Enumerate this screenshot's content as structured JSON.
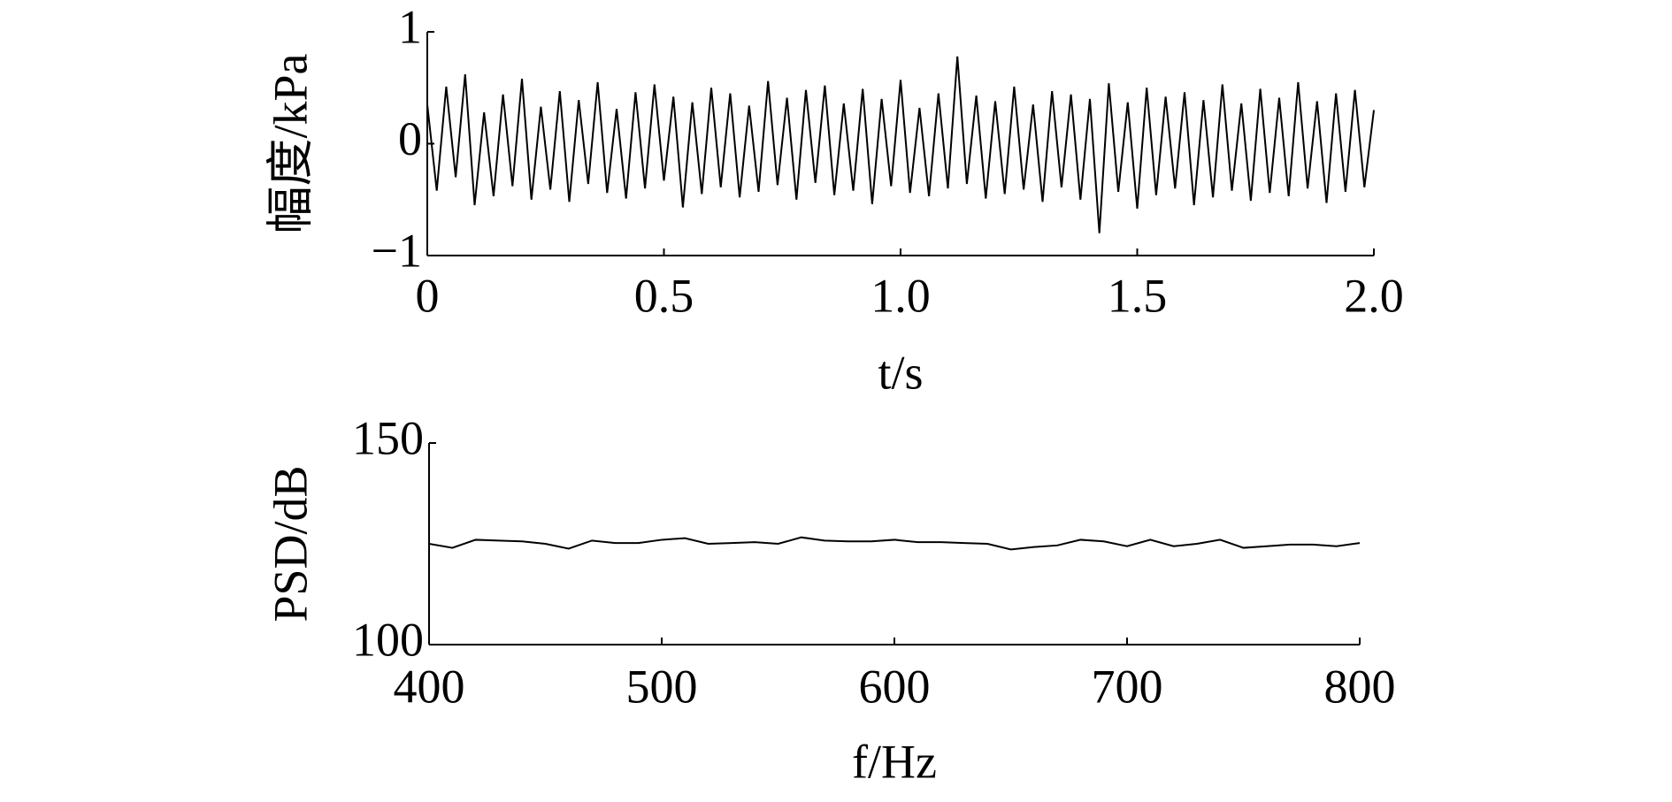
{
  "chart_data": [
    {
      "type": "line",
      "y_label": "幅度/kPa",
      "x_label": "t/s",
      "x": [
        0,
        0.02,
        0.04,
        0.06,
        0.08,
        0.1,
        0.12,
        0.14,
        0.16,
        0.18,
        0.2,
        0.22,
        0.24,
        0.26,
        0.28,
        0.3,
        0.32,
        0.34,
        0.36,
        0.38,
        0.4,
        0.42,
        0.44,
        0.46,
        0.48,
        0.5,
        0.52,
        0.54,
        0.56,
        0.58,
        0.6,
        0.62,
        0.64,
        0.66,
        0.68,
        0.7,
        0.72,
        0.74,
        0.76,
        0.78,
        0.8,
        0.82,
        0.84,
        0.86,
        0.88,
        0.9,
        0.92,
        0.94,
        0.96,
        0.98,
        1,
        1.02,
        1.04,
        1.06,
        1.08,
        1.1,
        1.12,
        1.14,
        1.16,
        1.18,
        1.2,
        1.22,
        1.24,
        1.26,
        1.28,
        1.3,
        1.32,
        1.34,
        1.36,
        1.38,
        1.4,
        1.42,
        1.44,
        1.46,
        1.48,
        1.5,
        1.52,
        1.54,
        1.56,
        1.58,
        1.6,
        1.62,
        1.64,
        1.66,
        1.68,
        1.7,
        1.72,
        1.74,
        1.76,
        1.78,
        1.8,
        1.82,
        1.84,
        1.86,
        1.88,
        1.9,
        1.92,
        1.94,
        1.96,
        1.98,
        2
      ],
      "series": [
        {
          "color": "#000000",
          "values": [
            0.35,
            -0.42,
            0.51,
            -0.3,
            0.62,
            -0.55,
            0.28,
            -0.47,
            0.44,
            -0.38,
            0.58,
            -0.5,
            0.33,
            -0.41,
            0.47,
            -0.52,
            0.39,
            -0.36,
            0.55,
            -0.44,
            0.31,
            -0.49,
            0.46,
            -0.4,
            0.53,
            -0.33,
            0.42,
            -0.57,
            0.37,
            -0.45,
            0.5,
            -0.39,
            0.45,
            -0.48,
            0.34,
            -0.43,
            0.56,
            -0.37,
            0.41,
            -0.5,
            0.48,
            -0.35,
            0.52,
            -0.46,
            0.36,
            -0.42,
            0.49,
            -0.54,
            0.4,
            -0.38,
            0.57,
            -0.44,
            0.32,
            -0.47,
            0.45,
            -0.4,
            0.78,
            -0.36,
            0.43,
            -0.49,
            0.38,
            -0.45,
            0.51,
            -0.41,
            0.35,
            -0.52,
            0.47,
            -0.39,
            0.44,
            -0.5,
            0.4,
            -0.8,
            0.54,
            -0.43,
            0.37,
            -0.58,
            0.5,
            -0.46,
            0.42,
            -0.4,
            0.46,
            -0.55,
            0.39,
            -0.48,
            0.53,
            -0.42,
            0.36,
            -0.51,
            0.49,
            -0.44,
            0.41,
            -0.47,
            0.55,
            -0.4,
            0.38,
            -0.53,
            0.45,
            -0.43,
            0.48,
            -0.39,
            0.3
          ]
        }
      ],
      "xlim": [
        0,
        2
      ],
      "xticks": [
        0,
        0.5,
        {
          "value": 1,
          "label": "1.0"
        },
        1.5,
        {
          "value": 2,
          "label": "2.0"
        }
      ],
      "ylim": [
        -1,
        1
      ],
      "yticks": [
        {
          "value": -1,
          "label": "−1"
        },
        0,
        1
      ]
    },
    {
      "type": "line",
      "y_label": "PSD/dB",
      "x_label": "f/Hz",
      "x": [
        400,
        410,
        420,
        430,
        440,
        450,
        460,
        470,
        480,
        490,
        500,
        510,
        520,
        530,
        540,
        550,
        560,
        570,
        580,
        590,
        600,
        610,
        620,
        630,
        640,
        650,
        660,
        670,
        680,
        690,
        700,
        710,
        720,
        730,
        740,
        750,
        760,
        770,
        780,
        790,
        800
      ],
      "series": [
        {
          "color": "#000000",
          "values": [
            125,
            124,
            126,
            125.8,
            125.6,
            125,
            123.8,
            125.8,
            125.2,
            125.2,
            126,
            126.4,
            125,
            125.2,
            125.4,
            125,
            126.6,
            125.8,
            125.6,
            125.6,
            126,
            125.4,
            125.4,
            125.2,
            125,
            123.6,
            124.2,
            124.6,
            126,
            125.6,
            124.4,
            126,
            124.4,
            125,
            126,
            124,
            124.4,
            124.8,
            124.8,
            124.4,
            125.2
          ]
        }
      ],
      "xlim": [
        400,
        800
      ],
      "xticks": [
        400,
        500,
        600,
        700,
        800
      ],
      "ylim": [
        100,
        150
      ],
      "yticks": [
        100,
        150
      ]
    }
  ]
}
